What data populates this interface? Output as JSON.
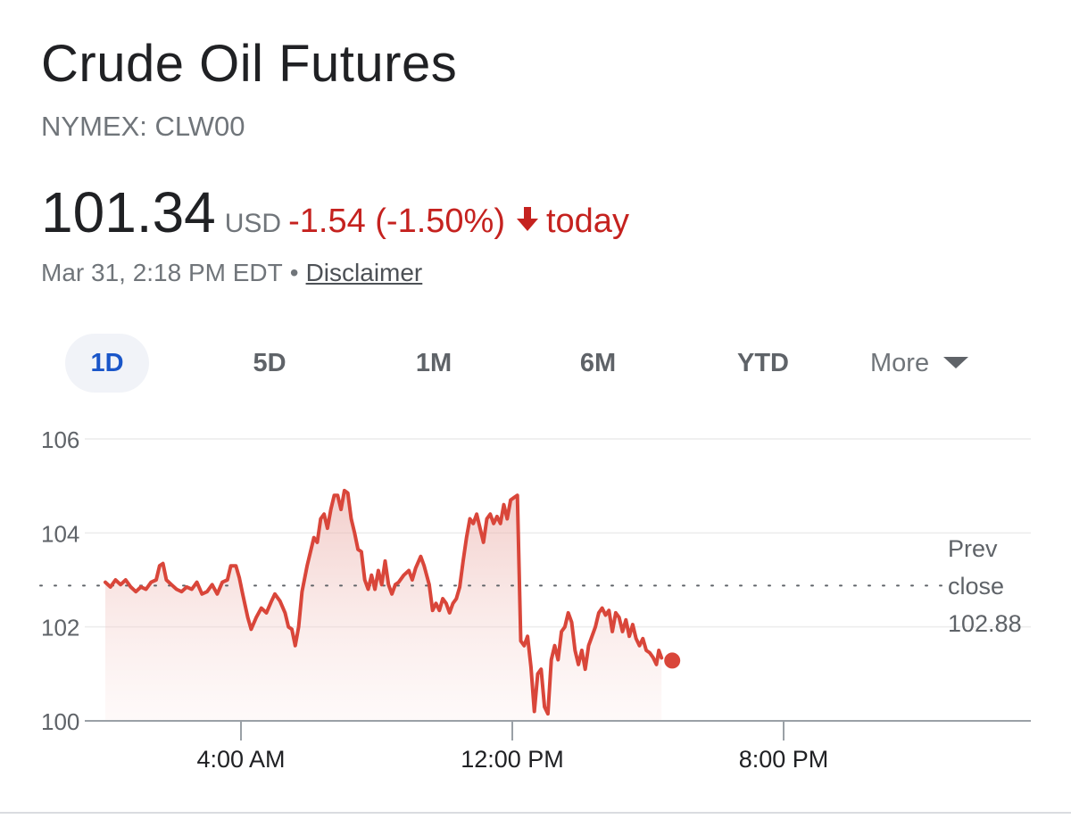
{
  "header": {
    "title": "Crude Oil Futures",
    "ticker": "NYMEX: CLW00",
    "price": "101.34",
    "currency": "USD",
    "change": "-1.54 (-1.50%)",
    "change_icon": "down-arrow-icon",
    "change_period": "today",
    "timestamp": "Mar 31, 2:18 PM EDT",
    "separator": "•",
    "disclaimer_label": "Disclaimer"
  },
  "ranges": [
    "1D",
    "5D",
    "1M",
    "6M",
    "YTD"
  ],
  "range_active": "1D",
  "range_more_label": "More",
  "colors": {
    "negative": "#c5221f",
    "line": "#d9463a",
    "accent": "#1a56c9"
  },
  "chart_data": {
    "type": "area",
    "x_unit": "hours since midnight",
    "ylim": [
      100,
      106
    ],
    "y_ticks": [
      100,
      102,
      104,
      106
    ],
    "x_ticks": [
      {
        "value": 4,
        "label": "4:00 AM"
      },
      {
        "value": 12,
        "label": "12:00 PM"
      },
      {
        "value": 20,
        "label": "8:00 PM"
      }
    ],
    "grid": "horizontal",
    "reference_line": {
      "value": 102.88,
      "label_lines": [
        "Prev",
        "close"
      ],
      "value_label": "102.88"
    },
    "series": [
      {
        "values": [
          [
            0.0,
            102.95
          ],
          [
            0.15,
            102.85
          ],
          [
            0.3,
            103.0
          ],
          [
            0.45,
            102.9
          ],
          [
            0.6,
            103.0
          ],
          [
            0.75,
            102.85
          ],
          [
            0.9,
            102.75
          ],
          [
            1.05,
            102.85
          ],
          [
            1.2,
            102.8
          ],
          [
            1.35,
            102.95
          ],
          [
            1.5,
            103.0
          ],
          [
            1.6,
            103.3
          ],
          [
            1.7,
            103.35
          ],
          [
            1.8,
            103.0
          ],
          [
            1.95,
            102.9
          ],
          [
            2.1,
            102.8
          ],
          [
            2.25,
            102.75
          ],
          [
            2.4,
            102.85
          ],
          [
            2.55,
            102.8
          ],
          [
            2.7,
            102.95
          ],
          [
            2.85,
            102.7
          ],
          [
            3.0,
            102.75
          ],
          [
            3.15,
            102.9
          ],
          [
            3.3,
            102.7
          ],
          [
            3.45,
            102.95
          ],
          [
            3.6,
            103.0
          ],
          [
            3.7,
            103.3
          ],
          [
            3.85,
            103.3
          ],
          [
            3.95,
            103.05
          ],
          [
            4.05,
            102.7
          ],
          [
            4.2,
            102.2
          ],
          [
            4.3,
            101.95
          ],
          [
            4.45,
            102.2
          ],
          [
            4.6,
            102.4
          ],
          [
            4.75,
            102.3
          ],
          [
            4.9,
            102.55
          ],
          [
            5.0,
            102.7
          ],
          [
            5.15,
            102.55
          ],
          [
            5.3,
            102.3
          ],
          [
            5.4,
            102.0
          ],
          [
            5.5,
            101.95
          ],
          [
            5.6,
            101.6
          ],
          [
            5.7,
            102.0
          ],
          [
            5.8,
            102.75
          ],
          [
            5.95,
            103.3
          ],
          [
            6.05,
            103.6
          ],
          [
            6.15,
            103.9
          ],
          [
            6.25,
            103.8
          ],
          [
            6.35,
            104.3
          ],
          [
            6.45,
            104.4
          ],
          [
            6.55,
            104.1
          ],
          [
            6.65,
            104.5
          ],
          [
            6.75,
            104.8
          ],
          [
            6.85,
            104.8
          ],
          [
            6.95,
            104.5
          ],
          [
            7.05,
            104.9
          ],
          [
            7.15,
            104.85
          ],
          [
            7.25,
            104.3
          ],
          [
            7.35,
            104.0
          ],
          [
            7.45,
            103.65
          ],
          [
            7.55,
            103.6
          ],
          [
            7.65,
            103.0
          ],
          [
            7.75,
            102.8
          ],
          [
            7.85,
            103.1
          ],
          [
            7.95,
            102.8
          ],
          [
            8.05,
            103.2
          ],
          [
            8.15,
            102.9
          ],
          [
            8.25,
            103.4
          ],
          [
            8.35,
            102.9
          ],
          [
            8.45,
            102.7
          ],
          [
            8.55,
            102.9
          ],
          [
            8.65,
            102.95
          ],
          [
            8.8,
            103.1
          ],
          [
            8.95,
            103.2
          ],
          [
            9.05,
            103.0
          ],
          [
            9.15,
            103.25
          ],
          [
            9.3,
            103.5
          ],
          [
            9.4,
            103.3
          ],
          [
            9.55,
            102.9
          ],
          [
            9.65,
            102.35
          ],
          [
            9.75,
            102.5
          ],
          [
            9.85,
            102.35
          ],
          [
            9.95,
            102.6
          ],
          [
            10.05,
            102.5
          ],
          [
            10.15,
            102.3
          ],
          [
            10.25,
            102.5
          ],
          [
            10.35,
            102.6
          ],
          [
            10.45,
            102.85
          ],
          [
            10.55,
            103.4
          ],
          [
            10.65,
            103.9
          ],
          [
            10.75,
            104.3
          ],
          [
            10.85,
            104.2
          ],
          [
            10.95,
            104.4
          ],
          [
            11.05,
            104.1
          ],
          [
            11.15,
            103.8
          ],
          [
            11.25,
            104.3
          ],
          [
            11.35,
            104.4
          ],
          [
            11.45,
            104.2
          ],
          [
            11.55,
            104.35
          ],
          [
            11.65,
            104.2
          ],
          [
            11.75,
            104.6
          ],
          [
            11.85,
            104.3
          ],
          [
            11.95,
            104.7
          ],
          [
            12.05,
            104.75
          ],
          [
            12.15,
            104.8
          ],
          [
            12.25,
            101.7
          ],
          [
            12.35,
            101.6
          ],
          [
            12.45,
            101.8
          ],
          [
            12.55,
            101.15
          ],
          [
            12.65,
            100.2
          ],
          [
            12.75,
            101.0
          ],
          [
            12.85,
            101.1
          ],
          [
            12.95,
            100.3
          ],
          [
            13.05,
            100.15
          ],
          [
            13.15,
            101.3
          ],
          [
            13.25,
            101.6
          ],
          [
            13.35,
            101.3
          ],
          [
            13.45,
            101.9
          ],
          [
            13.55,
            102.0
          ],
          [
            13.65,
            102.3
          ],
          [
            13.75,
            102.1
          ],
          [
            13.85,
            101.5
          ],
          [
            13.95,
            101.2
          ],
          [
            14.05,
            101.5
          ],
          [
            14.15,
            101.1
          ],
          [
            14.25,
            101.6
          ],
          [
            14.35,
            101.8
          ],
          [
            14.45,
            102.0
          ],
          [
            14.55,
            102.3
          ],
          [
            14.65,
            102.4
          ],
          [
            14.75,
            102.25
          ],
          [
            14.85,
            102.35
          ],
          [
            14.95,
            101.9
          ],
          [
            15.05,
            102.3
          ],
          [
            15.15,
            102.2
          ],
          [
            15.25,
            101.9
          ],
          [
            15.35,
            102.15
          ],
          [
            15.45,
            101.8
          ],
          [
            15.55,
            102.05
          ],
          [
            15.65,
            101.75
          ],
          [
            15.75,
            101.6
          ],
          [
            15.85,
            101.75
          ],
          [
            15.95,
            101.5
          ],
          [
            16.05,
            101.45
          ],
          [
            16.15,
            101.35
          ],
          [
            16.25,
            101.2
          ],
          [
            16.32,
            101.5
          ],
          [
            16.4,
            101.34
          ]
        ]
      }
    ]
  }
}
